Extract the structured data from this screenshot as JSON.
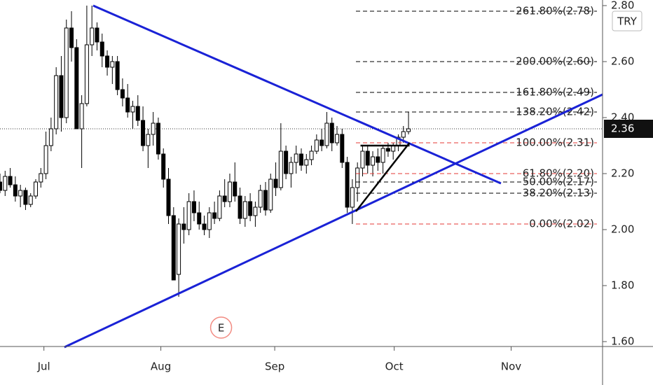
{
  "chart_data": {
    "type": "candlestick",
    "currency": "TRY",
    "last_price": 2.36,
    "xlim": [
      0,
      118
    ],
    "ylim": [
      1.5825,
      2.82
    ],
    "xticks": [
      {
        "value": 8.6,
        "label": "Jul"
      },
      {
        "value": 31.5,
        "label": "Aug"
      },
      {
        "value": 53.8,
        "label": "Sep"
      },
      {
        "value": 77.2,
        "label": "Oct"
      },
      {
        "value": 100.1,
        "label": "Nov"
      }
    ],
    "yticks": [
      {
        "value": 1.6,
        "label": "1.60"
      },
      {
        "value": 1.8,
        "label": "1.80"
      },
      {
        "value": 2.0,
        "label": "2.00"
      },
      {
        "value": 2.2,
        "label": "2.20"
      },
      {
        "value": 2.4,
        "label": "2.40"
      },
      {
        "value": 2.6,
        "label": "2.60"
      },
      {
        "value": 2.8,
        "label": "2.80"
      }
    ],
    "ohlc": [
      [
        2.17,
        2.2,
        2.13,
        2.14
      ],
      [
        2.14,
        2.21,
        2.12,
        2.19
      ],
      [
        2.19,
        2.22,
        2.15,
        2.16
      ],
      [
        2.16,
        2.19,
        2.1,
        2.12
      ],
      [
        2.12,
        2.16,
        2.08,
        2.14
      ],
      [
        2.14,
        2.15,
        2.07,
        2.09
      ],
      [
        2.09,
        2.13,
        2.08,
        2.12
      ],
      [
        2.12,
        2.18,
        2.11,
        2.17
      ],
      [
        2.17,
        2.22,
        2.15,
        2.2
      ],
      [
        2.2,
        2.35,
        2.18,
        2.3
      ],
      [
        2.3,
        2.4,
        2.28,
        2.36
      ],
      [
        2.36,
        2.58,
        2.34,
        2.55
      ],
      [
        2.55,
        2.62,
        2.35,
        2.4
      ],
      [
        2.4,
        2.75,
        2.38,
        2.72
      ],
      [
        2.72,
        2.78,
        2.6,
        2.65
      ],
      [
        2.65,
        2.68,
        2.36,
        2.36
      ],
      [
        2.36,
        2.48,
        2.22,
        2.45
      ],
      [
        2.45,
        2.8,
        2.44,
        2.66
      ],
      [
        2.66,
        2.8,
        2.62,
        2.72
      ],
      [
        2.72,
        2.74,
        2.64,
        2.67
      ],
      [
        2.67,
        2.7,
        2.58,
        2.62
      ],
      [
        2.62,
        2.64,
        2.55,
        2.58
      ],
      [
        2.58,
        2.62,
        2.52,
        2.6
      ],
      [
        2.6,
        2.62,
        2.48,
        2.5
      ],
      [
        2.5,
        2.54,
        2.44,
        2.47
      ],
      [
        2.47,
        2.52,
        2.4,
        2.42
      ],
      [
        2.42,
        2.46,
        2.36,
        2.44
      ],
      [
        2.44,
        2.48,
        2.37,
        2.39
      ],
      [
        2.39,
        2.44,
        2.28,
        2.3
      ],
      [
        2.3,
        2.36,
        2.22,
        2.34
      ],
      [
        2.34,
        2.42,
        2.3,
        2.38
      ],
      [
        2.38,
        2.4,
        2.25,
        2.27
      ],
      [
        2.27,
        2.29,
        2.15,
        2.18
      ],
      [
        2.18,
        2.22,
        2.02,
        2.05
      ],
      [
        2.05,
        2.08,
        1.82,
        1.82
      ],
      [
        1.84,
        2.04,
        1.76,
        2.02
      ],
      [
        2.02,
        2.08,
        1.95,
        2.0
      ],
      [
        2.0,
        2.13,
        1.98,
        2.1
      ],
      [
        2.1,
        2.14,
        2.03,
        2.06
      ],
      [
        2.06,
        2.1,
        2.0,
        2.02
      ],
      [
        2.02,
        2.05,
        1.98,
        2.0
      ],
      [
        2.0,
        2.08,
        1.97,
        2.06
      ],
      [
        2.06,
        2.1,
        2.02,
        2.04
      ],
      [
        2.04,
        2.14,
        2.03,
        2.12
      ],
      [
        2.12,
        2.18,
        2.08,
        2.1
      ],
      [
        2.1,
        2.2,
        2.08,
        2.17
      ],
      [
        2.17,
        2.24,
        2.1,
        2.12
      ],
      [
        2.12,
        2.15,
        2.02,
        2.04
      ],
      [
        2.04,
        2.12,
        2.01,
        2.1
      ],
      [
        2.1,
        2.13,
        2.03,
        2.05
      ],
      [
        2.05,
        2.1,
        2.01,
        2.08
      ],
      [
        2.08,
        2.16,
        2.06,
        2.14
      ],
      [
        2.14,
        2.17,
        2.05,
        2.07
      ],
      [
        2.07,
        2.2,
        2.06,
        2.18
      ],
      [
        2.18,
        2.24,
        2.12,
        2.15
      ],
      [
        2.15,
        2.38,
        2.14,
        2.28
      ],
      [
        2.28,
        2.3,
        2.18,
        2.2
      ],
      [
        2.2,
        2.26,
        2.15,
        2.24
      ],
      [
        2.24,
        2.3,
        2.2,
        2.27
      ],
      [
        2.27,
        2.29,
        2.21,
        2.23
      ],
      [
        2.23,
        2.27,
        2.2,
        2.25
      ],
      [
        2.25,
        2.3,
        2.23,
        2.28
      ],
      [
        2.28,
        2.34,
        2.27,
        2.32
      ],
      [
        2.32,
        2.36,
        2.28,
        2.3
      ],
      [
        2.3,
        2.42,
        2.29,
        2.38
      ],
      [
        2.38,
        2.4,
        2.28,
        2.31
      ],
      [
        2.31,
        2.37,
        2.3,
        2.34
      ],
      [
        2.34,
        2.36,
        2.22,
        2.24
      ],
      [
        2.24,
        2.26,
        2.06,
        2.08
      ],
      [
        2.08,
        2.18,
        2.02,
        2.15
      ],
      [
        2.15,
        2.24,
        2.1,
        2.22
      ],
      [
        2.22,
        2.3,
        2.19,
        2.28
      ],
      [
        2.28,
        2.3,
        2.2,
        2.23
      ],
      [
        2.23,
        2.28,
        2.19,
        2.26
      ],
      [
        2.26,
        2.29,
        2.21,
        2.24
      ],
      [
        2.24,
        2.3,
        2.2,
        2.29
      ],
      [
        2.29,
        2.31,
        2.26,
        2.28
      ],
      [
        2.28,
        2.31,
        2.25,
        2.3
      ],
      [
        2.3,
        2.34,
        2.28,
        2.33
      ],
      [
        2.33,
        2.37,
        2.31,
        2.35
      ],
      [
        2.35,
        2.42,
        2.34,
        2.36
      ]
    ],
    "fib_levels": [
      {
        "value": 2.78,
        "label": "261.80%(2.78)",
        "color": "#000000"
      },
      {
        "value": 2.6,
        "label": "200.00%(2.60)",
        "color": "#000000"
      },
      {
        "value": 2.49,
        "label": "161.80%(2.49)",
        "color": "#000000"
      },
      {
        "value": 2.42,
        "label": "138.20%(2.42)",
        "color": "#000000"
      },
      {
        "value": 2.31,
        "label": "100.00%(2.31)",
        "color": "#e53935"
      },
      {
        "value": 2.2,
        "label": "61.80%(2.20)",
        "color": "#e53935"
      },
      {
        "value": 2.17,
        "label": "50.00%(2.17)",
        "color": "#000000"
      },
      {
        "value": 2.13,
        "label": "38.20%(2.13)",
        "color": "#000000"
      },
      {
        "value": 2.02,
        "label": "0.00%(2.02)",
        "color": "#e53935"
      }
    ],
    "trend_lines": [
      {
        "color": "#1a22d6",
        "points": [
          [
            18.24,
            2.8
          ],
          [
            98.1,
            2.165
          ]
        ]
      },
      {
        "color": "#1a22d6",
        "points": [
          [
            12.6,
            1.58
          ],
          [
            118,
            2.4825
          ]
        ]
      },
      {
        "color": "#000000",
        "points": [
          [
            69.7,
            2.065
          ],
          [
            80.2,
            2.31
          ]
        ]
      },
      {
        "color": "#000000",
        "points": [
          [
            70.6,
            2.3
          ],
          [
            80.2,
            2.3
          ]
        ]
      }
    ],
    "events": [
      {
        "x": 43.3,
        "label": "E"
      }
    ]
  }
}
